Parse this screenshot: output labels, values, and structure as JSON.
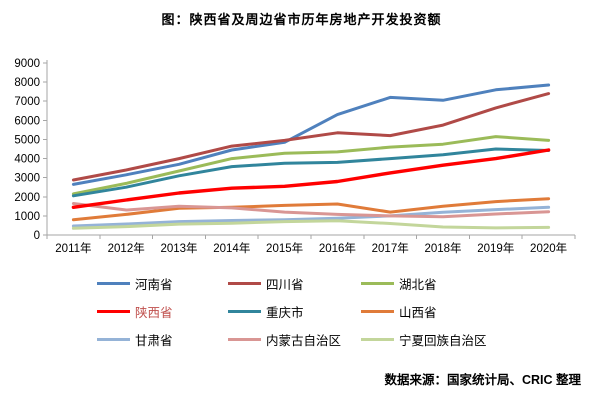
{
  "title": "图：陕西省及周边省市历年房地产开发投资额",
  "source_note": "数据来源：国家统计局、CRIC 整理",
  "axis_color": "#a6a6a6",
  "chart_data": {
    "type": "line",
    "title": "图：陕西省及周边省市历年房地产开发投资额",
    "categories": [
      "2011年",
      "2012年",
      "2013年",
      "2014年",
      "2015年",
      "2016年",
      "2017年",
      "2018年",
      "2019年",
      "2020年"
    ],
    "series": [
      {
        "name": "河南省",
        "color": "#4f81bd",
        "label_color": "#000000",
        "values": [
          2650,
          3150,
          3700,
          4450,
          4850,
          6300,
          7200,
          7050,
          7600,
          7850
        ]
      },
      {
        "name": "四川省",
        "color": "#b04a47",
        "label_color": "#000000",
        "values": [
          2880,
          3400,
          4000,
          4650,
          4950,
          5350,
          5200,
          5750,
          6650,
          7400
        ]
      },
      {
        "name": "湖北省",
        "color": "#9bbb59",
        "label_color": "#000000",
        "values": [
          2150,
          2700,
          3350,
          4000,
          4280,
          4350,
          4600,
          4750,
          5150,
          4950
        ]
      },
      {
        "name": "陕西省",
        "color": "#ff0000",
        "label_color": "#c0504d",
        "values": [
          1450,
          1830,
          2200,
          2450,
          2550,
          2800,
          3250,
          3650,
          4000,
          4450
        ]
      },
      {
        "name": "重庆市",
        "color": "#31859c",
        "label_color": "#000000",
        "values": [
          2050,
          2500,
          3100,
          3580,
          3750,
          3800,
          4000,
          4200,
          4500,
          4420
        ]
      },
      {
        "name": "山西省",
        "color": "#e07b39",
        "label_color": "#000000",
        "values": [
          800,
          1080,
          1400,
          1450,
          1550,
          1620,
          1200,
          1500,
          1750,
          1900
        ]
      },
      {
        "name": "甘肃省",
        "color": "#95b3d7",
        "label_color": "#000000",
        "values": [
          470,
          575,
          700,
          760,
          800,
          880,
          1000,
          1190,
          1330,
          1450
        ]
      },
      {
        "name": "内蒙古自治区",
        "color": "#d99694",
        "label_color": "#000000",
        "values": [
          1650,
          1310,
          1500,
          1420,
          1200,
          1080,
          1000,
          950,
          1100,
          1220
        ]
      },
      {
        "name": "宁夏回族自治区",
        "color": "#c3d69b",
        "label_color": "#000000",
        "values": [
          350,
          440,
          570,
          620,
          700,
          750,
          600,
          420,
          370,
          400
        ]
      }
    ],
    "highlight_series": "陕西省",
    "ylim": [
      0,
      9000
    ],
    "ytick_interval": 1000,
    "grid": false,
    "legend_position": "bottom"
  }
}
